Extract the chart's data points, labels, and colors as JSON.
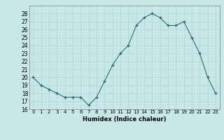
{
  "x": [
    0,
    1,
    2,
    3,
    4,
    5,
    6,
    7,
    8,
    9,
    10,
    11,
    12,
    13,
    14,
    15,
    16,
    17,
    18,
    19,
    20,
    21,
    22,
    23
  ],
  "y": [
    20,
    19,
    18.5,
    18,
    17.5,
    17.5,
    17.5,
    16.5,
    17.5,
    19.5,
    21.5,
    23,
    24,
    26.5,
    27.5,
    28,
    27.5,
    26.5,
    26.5,
    27,
    25,
    23,
    20,
    18
  ],
  "xlabel": "Humidex (Indice chaleur)",
  "ylim": [
    16,
    29
  ],
  "xlim": [
    -0.5,
    23.5
  ],
  "yticks": [
    16,
    17,
    18,
    19,
    20,
    21,
    22,
    23,
    24,
    25,
    26,
    27,
    28
  ],
  "xticks": [
    0,
    1,
    2,
    3,
    4,
    5,
    6,
    7,
    8,
    9,
    10,
    11,
    12,
    13,
    14,
    15,
    16,
    17,
    18,
    19,
    20,
    21,
    22,
    23
  ],
  "xtick_labels": [
    "0",
    "1",
    "2",
    "3",
    "4",
    "5",
    "6",
    "7",
    "8",
    "9",
    "10",
    "11",
    "12",
    "13",
    "14",
    "15",
    "16",
    "17",
    "18",
    "19",
    "20",
    "21",
    "22",
    "23"
  ],
  "line_color": "#2d6e6e",
  "marker_color": "#2d6e6e",
  "bg_color": "#c8e8e8",
  "grid_color": "#b0d4d4"
}
